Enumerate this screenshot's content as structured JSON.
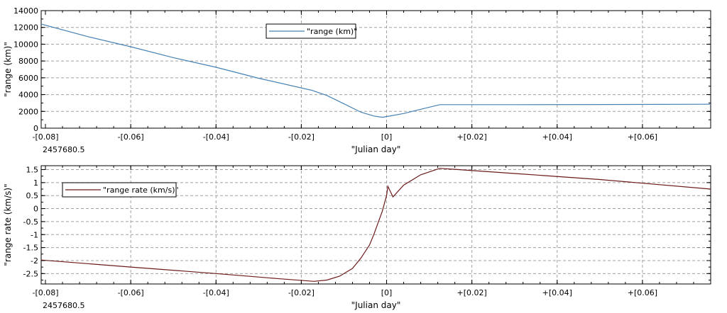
{
  "chart_data": [
    {
      "type": "line",
      "xlabel": "\"Julian day\"",
      "ylabel": "\"range (km)\"",
      "x_offset_label": "2457680.5",
      "xlim": [
        -0.081,
        0.076
      ],
      "ylim": [
        0,
        14000
      ],
      "x_ticks": [
        -0.08,
        -0.06,
        -0.04,
        -0.02,
        0,
        0.02,
        0.04,
        0.06
      ],
      "x_tick_labels": [
        "-[0.08]",
        "-[0.06]",
        "-[0.04]",
        "-[0.02]",
        "[0]",
        "+[0.02]",
        "+[0.04]",
        "+[0.06]"
      ],
      "y_ticks": [
        0,
        2000,
        4000,
        6000,
        8000,
        10000,
        12000,
        14000
      ],
      "y_tick_labels": [
        "0",
        "2000",
        "4000",
        "6000",
        "8000",
        "10000",
        "12000",
        "14000"
      ],
      "grid": true,
      "legend_position": "top-center",
      "series": [
        {
          "name": "\"range (km)\"",
          "color": "#4682b4",
          "x": [
            -0.081,
            -0.07,
            -0.06,
            -0.05,
            -0.04,
            -0.03,
            -0.0175,
            -0.014,
            -0.01,
            -0.006,
            -0.003,
            -0.001,
            0,
            0.004,
            0.008,
            0.0125,
            0.03,
            0.05,
            0.076
          ],
          "y": [
            12400,
            10900,
            9700,
            8400,
            7250,
            5950,
            4500,
            3900,
            2900,
            1900,
            1450,
            1300,
            1380,
            1750,
            2250,
            2800,
            2800,
            2820,
            2850
          ]
        }
      ]
    },
    {
      "type": "line",
      "xlabel": "\"Julian day\"",
      "ylabel": "\"range rate (km/s)\"",
      "x_offset_label": "2457680.5",
      "xlim": [
        -0.081,
        0.076
      ],
      "ylim": [
        -2.9,
        1.65
      ],
      "x_ticks": [
        -0.08,
        -0.06,
        -0.04,
        -0.02,
        0,
        0.02,
        0.04,
        0.06
      ],
      "x_tick_labels": [
        "-[0.08]",
        "-[0.06]",
        "-[0.04]",
        "-[0.02]",
        "[0]",
        "+[0.02]",
        "+[0.04]",
        "+[0.06]"
      ],
      "y_ticks": [
        -2.5,
        -2,
        -1.5,
        -1,
        -0.5,
        0,
        0.5,
        1,
        1.5
      ],
      "y_tick_labels": [
        "-2.5",
        "-2",
        "-1.5",
        "-1",
        "-0.5",
        "0",
        "0.5",
        "1",
        "1.5"
      ],
      "grid": true,
      "legend_position": "top-left",
      "series": [
        {
          "name": "\"range rate (km/s)\"",
          "color": "#6b1a1a",
          "x": [
            -0.081,
            -0.06,
            -0.04,
            -0.025,
            -0.017,
            -0.014,
            -0.011,
            -0.008,
            -0.006,
            -0.004,
            -0.003,
            -0.002,
            -0.001,
            0,
            0.0003,
            0.0015,
            0.004,
            0.008,
            0.0125,
            0.03,
            0.05,
            0.076
          ],
          "y": [
            -1.98,
            -2.25,
            -2.5,
            -2.7,
            -2.8,
            -2.75,
            -2.6,
            -2.3,
            -1.9,
            -1.4,
            -1.0,
            -0.55,
            -0.1,
            0.5,
            0.86,
            0.45,
            0.9,
            1.3,
            1.55,
            1.35,
            1.12,
            0.75
          ]
        }
      ]
    }
  ]
}
